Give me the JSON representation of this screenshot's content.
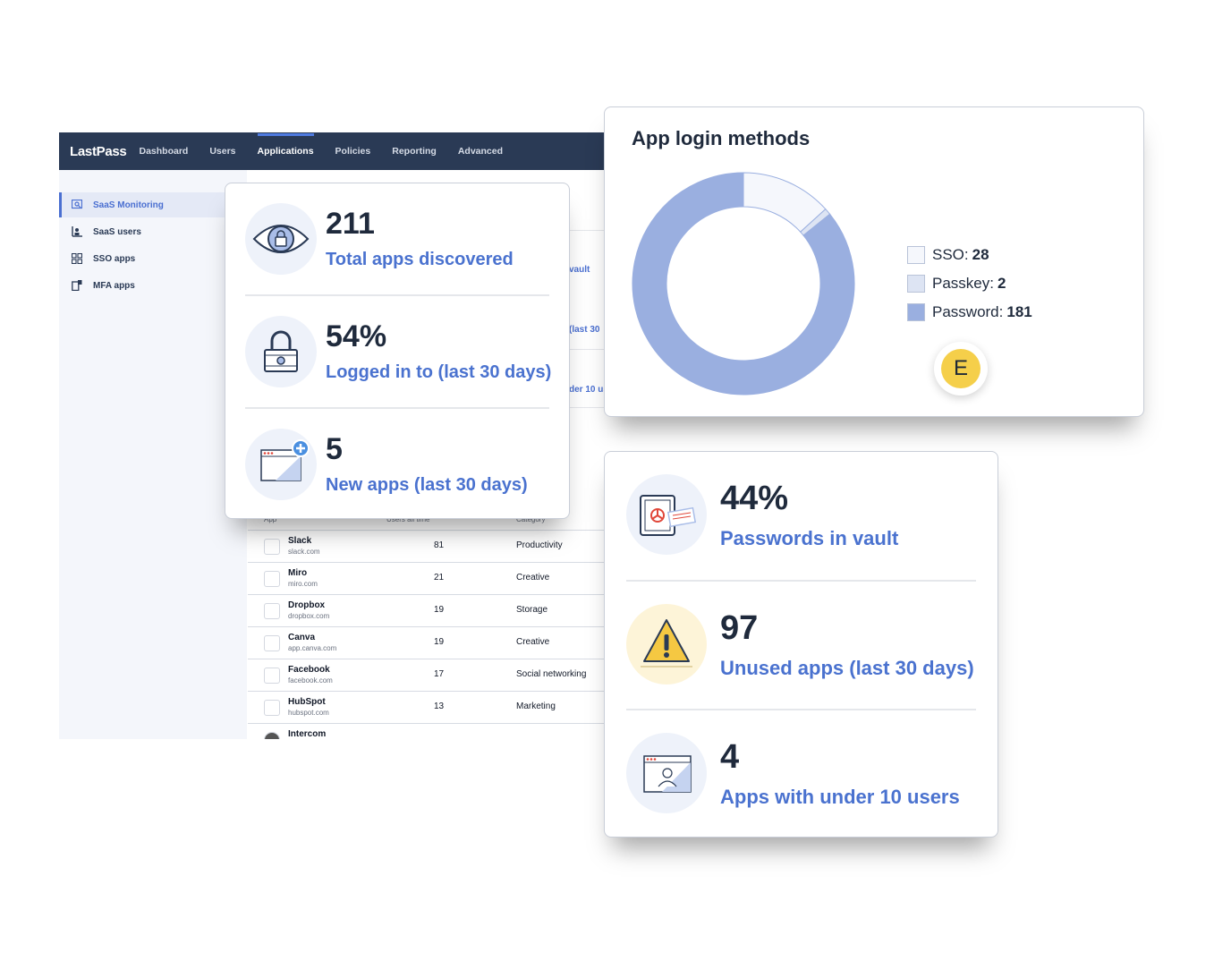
{
  "app": {
    "logo": "LastPass",
    "nav": [
      "Dashboard",
      "Users",
      "Applications",
      "Policies",
      "Reporting",
      "Advanced"
    ],
    "nav_active": "Applications",
    "sidebar": [
      {
        "label": "SaaS Monitoring",
        "icon": "monitor-search-icon",
        "active": true
      },
      {
        "label": "SaaS users",
        "icon": "users-chart-icon",
        "active": false
      },
      {
        "label": "SSO apps",
        "icon": "grid-icon",
        "active": false
      },
      {
        "label": "MFA apps",
        "icon": "device-icon",
        "active": false
      }
    ],
    "peek_texts": [
      "vault",
      "(last 30",
      "der 10 us"
    ],
    "table": {
      "headers": [
        "App",
        "Users all time",
        "Category"
      ],
      "rows": [
        {
          "name": "Slack",
          "domain": "slack.com",
          "users": "81",
          "category": "Productivity"
        },
        {
          "name": "Miro",
          "domain": "miro.com",
          "users": "21",
          "category": "Creative"
        },
        {
          "name": "Dropbox",
          "domain": "dropbox.com",
          "users": "19",
          "category": "Storage"
        },
        {
          "name": "Canva",
          "domain": "app.canva.com",
          "users": "19",
          "category": "Creative"
        },
        {
          "name": "Facebook",
          "domain": "facebook.com",
          "users": "17",
          "category": "Social networking"
        },
        {
          "name": "HubSpot",
          "domain": "hubspot.com",
          "users": "13",
          "category": "Marketing"
        },
        {
          "name": "Intercom",
          "domain": "",
          "users": "",
          "category": ""
        }
      ]
    }
  },
  "overview_card": {
    "stats": [
      {
        "value": "211",
        "label": "Total apps discovered",
        "icon": "eye-lock-icon"
      },
      {
        "value": "54%",
        "label": "Logged in to (last 30 days)",
        "icon": "padlock-icon"
      },
      {
        "value": "5",
        "label": "New apps (last 30 days)",
        "icon": "new-window-icon"
      }
    ]
  },
  "login_methods_card": {
    "title": "App login methods",
    "legend": [
      {
        "label": "SSO:",
        "value": "28",
        "color": "#f5f7fc"
      },
      {
        "label": "Passkey:",
        "value": "2",
        "color": "#dde4f3"
      },
      {
        "label": "Password:",
        "value": "181",
        "color": "#9aafe0"
      }
    ],
    "avatar_initial": "E"
  },
  "chart_data": {
    "type": "pie",
    "title": "App login methods",
    "categories": [
      "SSO",
      "Passkey",
      "Password"
    ],
    "values": [
      28,
      2,
      181
    ],
    "colors": [
      "#f5f7fc",
      "#dde4f3",
      "#9aafe0"
    ],
    "legend": "right"
  },
  "health_card": {
    "stats": [
      {
        "value": "44%",
        "label": "Passwords in vault",
        "icon": "vault-safe-icon"
      },
      {
        "value": "97",
        "label": "Unused apps (last 30 days)",
        "icon": "warning-icon"
      },
      {
        "value": "4",
        "label": "Apps with under 10 users",
        "icon": "user-window-icon"
      }
    ]
  }
}
